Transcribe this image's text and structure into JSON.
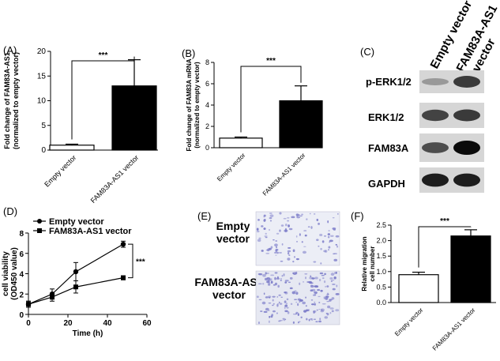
{
  "panels": {
    "A": {
      "letter": "(A)"
    },
    "B": {
      "letter": "(B)"
    },
    "C": {
      "letter": "(C)"
    },
    "D": {
      "letter": "(D)"
    },
    "E": {
      "letter": "(E)"
    },
    "F": {
      "letter": "(F)"
    }
  },
  "blot": {
    "lane_labels": [
      "Empty  vector",
      "FAM83A-AS1",
      "vector"
    ],
    "rows": [
      "p-ERK1/2",
      "ERK1/2",
      "FAM83A",
      "GAPDH"
    ],
    "band_intensity": [
      [
        0.25,
        0.75
      ],
      [
        0.7,
        0.75
      ],
      [
        0.65,
        1.0
      ],
      [
        0.9,
        0.9
      ]
    ]
  },
  "micrographs": {
    "labels": [
      "Empty",
      "vector",
      "FAM83A-AS1",
      "vector"
    ],
    "stain_color": "#7a7ac8"
  },
  "chart_data": [
    {
      "id": "A",
      "type": "bar",
      "categories": [
        "Empty vector",
        "FAM83A-AS1 vector"
      ],
      "values": [
        1.0,
        13.0
      ],
      "errors": [
        0.2,
        5.3
      ],
      "fills": [
        "#ffffff",
        "#000000"
      ],
      "ylabel_lines": [
        "Fold change of FAM83A-AS1",
        "(normalized to empty vector)"
      ],
      "ylim": [
        0,
        20
      ],
      "yticks": [
        0,
        5,
        10,
        15,
        20
      ],
      "significance": "***"
    },
    {
      "id": "B",
      "type": "bar",
      "categories": [
        "Empty vector",
        "FAM83A-AS1 vector"
      ],
      "values": [
        0.9,
        4.4
      ],
      "errors": [
        0.1,
        1.4
      ],
      "fills": [
        "#ffffff",
        "#000000"
      ],
      "ylabel_lines": [
        "Fold change of FAM83A mRNA",
        "(normalized to empty vector)"
      ],
      "ylim": [
        0,
        8
      ],
      "yticks": [
        0,
        2,
        4,
        6,
        8
      ],
      "significance": "***"
    },
    {
      "id": "D",
      "type": "line",
      "x": [
        0,
        12,
        24,
        48
      ],
      "series": [
        {
          "name": "Empty vector",
          "marker": "circle",
          "values": [
            1.0,
            2.0,
            4.2,
            6.9
          ],
          "errors": [
            0.3,
            0.5,
            0.9,
            0.3
          ]
        },
        {
          "name": "FAM83A-AS1 vector",
          "marker": "square",
          "values": [
            1.0,
            1.7,
            2.7,
            3.6
          ],
          "errors": [
            0.3,
            0.4,
            0.6,
            0.2
          ]
        }
      ],
      "xlabel": "Time (h)",
      "ylabel_lines": [
        "cell viability",
        "(OD450 value)"
      ],
      "xlim": [
        0,
        60
      ],
      "ylim": [
        0,
        8
      ],
      "xticks": [
        0,
        20,
        40,
        60
      ],
      "yticks": [
        0,
        2,
        4,
        6,
        8
      ],
      "significance": "***"
    },
    {
      "id": "F",
      "type": "bar",
      "categories": [
        "Empty vector",
        "FAM83A-AS1 vector"
      ],
      "values": [
        0.9,
        2.15
      ],
      "errors": [
        0.08,
        0.2
      ],
      "fills": [
        "#ffffff",
        "#000000"
      ],
      "ylabel_lines": [
        "Relative migration",
        "cell number"
      ],
      "ylim": [
        0,
        2.5
      ],
      "yticks": [
        0.0,
        0.5,
        1.0,
        1.5,
        2.0,
        2.5
      ],
      "significance": "***"
    }
  ]
}
